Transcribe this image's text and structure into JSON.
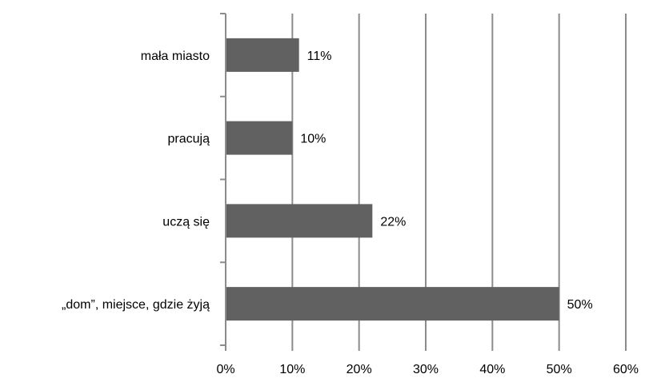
{
  "chart_data": {
    "type": "bar",
    "orientation": "horizontal",
    "categories": [
      "mała miasto",
      "pracują",
      "uczą się",
      "„dom”, miejsce, gdzie żyją"
    ],
    "values": [
      11,
      10,
      22,
      50
    ],
    "data_labels": [
      "11%",
      "10%",
      "22%",
      "50%"
    ],
    "xlim": [
      0,
      60
    ],
    "x_ticks": [
      0,
      10,
      20,
      30,
      40,
      50,
      60
    ],
    "x_tick_labels": [
      "0%",
      "10%",
      "20%",
      "30%",
      "40%",
      "50%",
      "60%"
    ],
    "grid": "vertical",
    "legend": "none",
    "colors": {
      "bar": "#616161",
      "grid": "#8c8c8c",
      "axis": "#8c8c8c"
    }
  }
}
